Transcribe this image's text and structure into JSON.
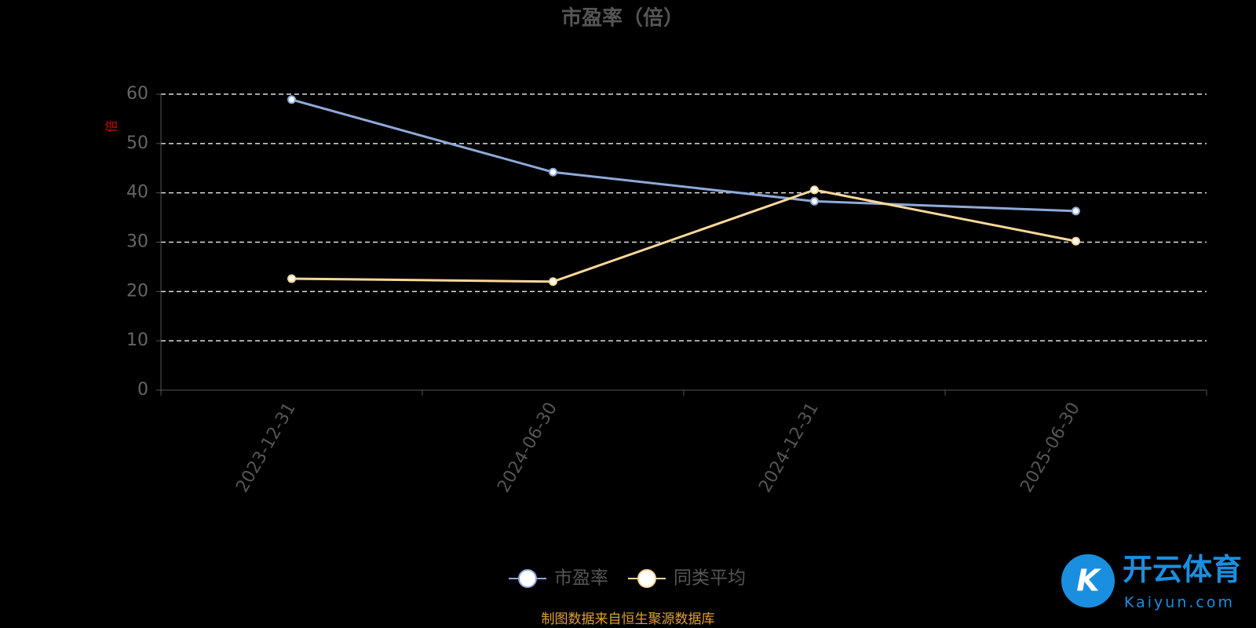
{
  "chart_data": {
    "type": "line",
    "title": "市盈率（倍）",
    "y_label": "倍",
    "categories": [
      "2023-12-31",
      "2024-06-30",
      "2024-12-31",
      "2025-06-30"
    ],
    "series": [
      {
        "name": "市盈率",
        "color": "#8fa9d8",
        "values": [
          58.9,
          44.2,
          38.3,
          36.3
        ]
      },
      {
        "name": "同类平均",
        "color": "#fcd89a",
        "values": [
          22.6,
          22.0,
          40.6,
          30.2
        ]
      }
    ],
    "ylim": [
      0,
      60
    ],
    "yticks": [
      0,
      10,
      20,
      30,
      40,
      50,
      60
    ],
    "grid": true,
    "legend": "bottom",
    "source": "制图数据来自恒生聚源数据库",
    "watermark": {
      "brand": "开云体育",
      "site": "Kaiyun.com"
    }
  }
}
